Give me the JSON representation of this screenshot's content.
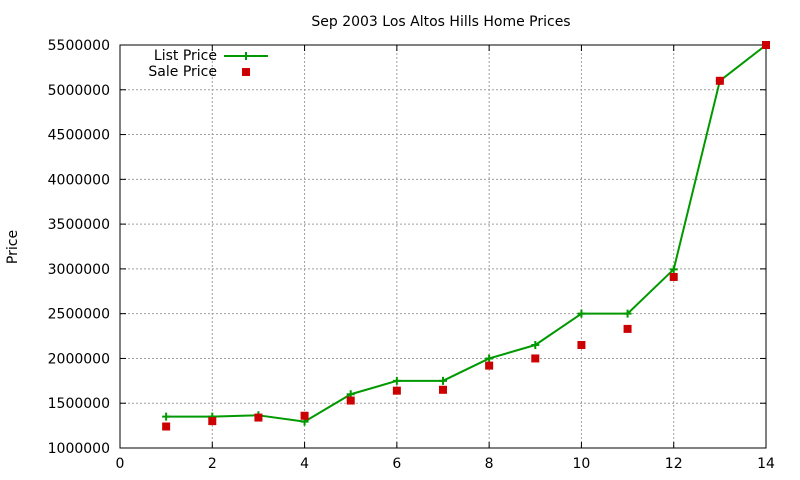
{
  "chart_data": {
    "type": "line",
    "title": "Sep 2003 Los Altos Hills Home Prices",
    "xlabel": "",
    "ylabel": "Price",
    "xlim": [
      0,
      14
    ],
    "ylim": [
      1000000,
      5500000
    ],
    "x_ticks": [
      0,
      2,
      4,
      6,
      8,
      10,
      12,
      14
    ],
    "y_ticks": [
      1000000,
      1500000,
      2000000,
      2500000,
      3000000,
      3500000,
      4000000,
      4500000,
      5000000,
      5500000
    ],
    "grid": true,
    "legend_position": "top-left",
    "series": [
      {
        "name": "List Price",
        "style": "line+cross",
        "color": "#009900",
        "x": [
          1,
          2,
          3,
          4,
          5,
          6,
          7,
          8,
          9,
          10,
          11,
          12,
          13,
          14
        ],
        "values": [
          1350000,
          1350000,
          1365000,
          1295000,
          1600000,
          1750000,
          1750000,
          2000000,
          2150000,
          2500000,
          2500000,
          2995000,
          5100000,
          5500000
        ]
      },
      {
        "name": "Sale Price",
        "style": "square",
        "color": "#cc0000",
        "x": [
          1,
          2,
          3,
          4,
          5,
          6,
          7,
          8,
          9,
          10,
          11,
          12,
          13,
          14
        ],
        "values": [
          1240000,
          1300000,
          1340000,
          1360000,
          1530000,
          1640000,
          1650000,
          1920000,
          2000000,
          2150000,
          2330000,
          2910000,
          5100000,
          5500000
        ]
      }
    ]
  }
}
